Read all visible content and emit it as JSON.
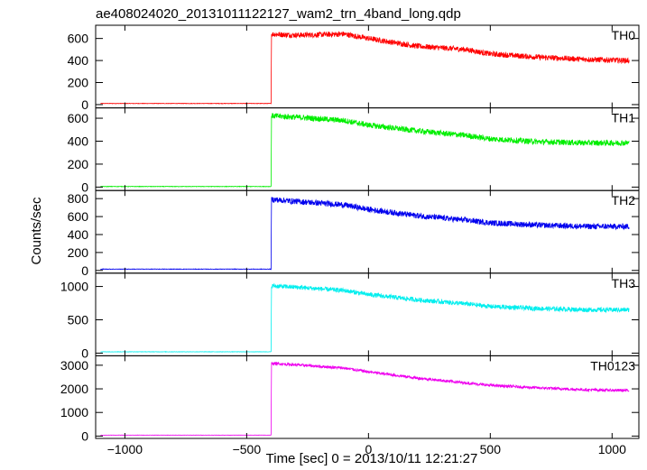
{
  "chart_data": {
    "type": "line",
    "title": "ae408024020_20131011122127_wam2_trn_4band_long.qdp",
    "xlabel": "Time [sec] 0 = 2013/10/11 12:21:27",
    "ylabel": "Counts/sec",
    "xlim": [
      -1120,
      1110
    ],
    "x_ticks": [
      "−1000",
      "−500",
      "0",
      "500",
      "1000"
    ],
    "x_tick_values": [
      -1000,
      -500,
      0,
      500,
      1000
    ],
    "panels": [
      {
        "name": "TH0",
        "color": "#ff0000",
        "ylim": [
          -30,
          720
        ],
        "y_ticks": [
          "0",
          "200",
          "400",
          "600"
        ],
        "y_tick_values": [
          0,
          200,
          400,
          600
        ],
        "series": {
          "name": "TH0",
          "x": [
            -1100,
            -400,
            -398,
            -300,
            -100,
            0,
            200,
            400,
            500,
            700,
            900,
            1070
          ],
          "y": [
            10,
            10,
            640,
            630,
            640,
            600,
            530,
            500,
            460,
            430,
            410,
            400
          ],
          "noise": 25
        }
      },
      {
        "name": "TH1",
        "color": "#00ee00",
        "ylim": [
          -30,
          690
        ],
        "y_ticks": [
          "0",
          "200",
          "400",
          "600"
        ],
        "y_tick_values": [
          0,
          200,
          400,
          600
        ],
        "series": {
          "name": "TH1",
          "x": [
            -1100,
            -400,
            -398,
            -300,
            -100,
            0,
            200,
            400,
            500,
            700,
            900,
            1070
          ],
          "y": [
            5,
            5,
            620,
            610,
            580,
            540,
            490,
            450,
            420,
            395,
            385,
            385
          ],
          "noise": 25
        }
      },
      {
        "name": "TH2",
        "color": "#0000ee",
        "ylim": [
          -30,
          890
        ],
        "y_ticks": [
          "0",
          "200",
          "400",
          "600",
          "800"
        ],
        "y_tick_values": [
          0,
          200,
          400,
          600,
          800
        ],
        "series": {
          "name": "TH2",
          "x": [
            -1100,
            -400,
            -398,
            -300,
            -100,
            0,
            200,
            400,
            500,
            700,
            900,
            1070
          ],
          "y": [
            15,
            15,
            790,
            770,
            730,
            680,
            610,
            560,
            530,
            505,
            490,
            490
          ],
          "noise": 32
        }
      },
      {
        "name": "TH3",
        "color": "#00eeee",
        "ylim": [
          -40,
          1200
        ],
        "y_ticks": [
          "0",
          "500",
          "1000"
        ],
        "y_tick_values": [
          0,
          500,
          1000
        ],
        "series": {
          "name": "TH3",
          "x": [
            -1100,
            -400,
            -398,
            -300,
            -100,
            0,
            200,
            400,
            500,
            700,
            900,
            1070
          ],
          "y": [
            20,
            20,
            1010,
            990,
            940,
            880,
            800,
            740,
            700,
            670,
            650,
            650
          ],
          "noise": 35
        }
      },
      {
        "name": "TH0123",
        "color": "#ee00ee",
        "ylim": [
          -100,
          3400
        ],
        "y_ticks": [
          "0",
          "1000",
          "2000",
          "3000"
        ],
        "y_tick_values": [
          0,
          1000,
          2000,
          3000
        ],
        "series": {
          "name": "TH0123",
          "x": [
            -1100,
            -400,
            -398,
            -300,
            -100,
            0,
            200,
            400,
            500,
            700,
            900,
            1070
          ],
          "y": [
            40,
            40,
            3080,
            3020,
            2880,
            2720,
            2460,
            2250,
            2150,
            2040,
            1960,
            1930
          ],
          "noise": 60
        }
      }
    ],
    "grid": false,
    "legend": "none"
  }
}
